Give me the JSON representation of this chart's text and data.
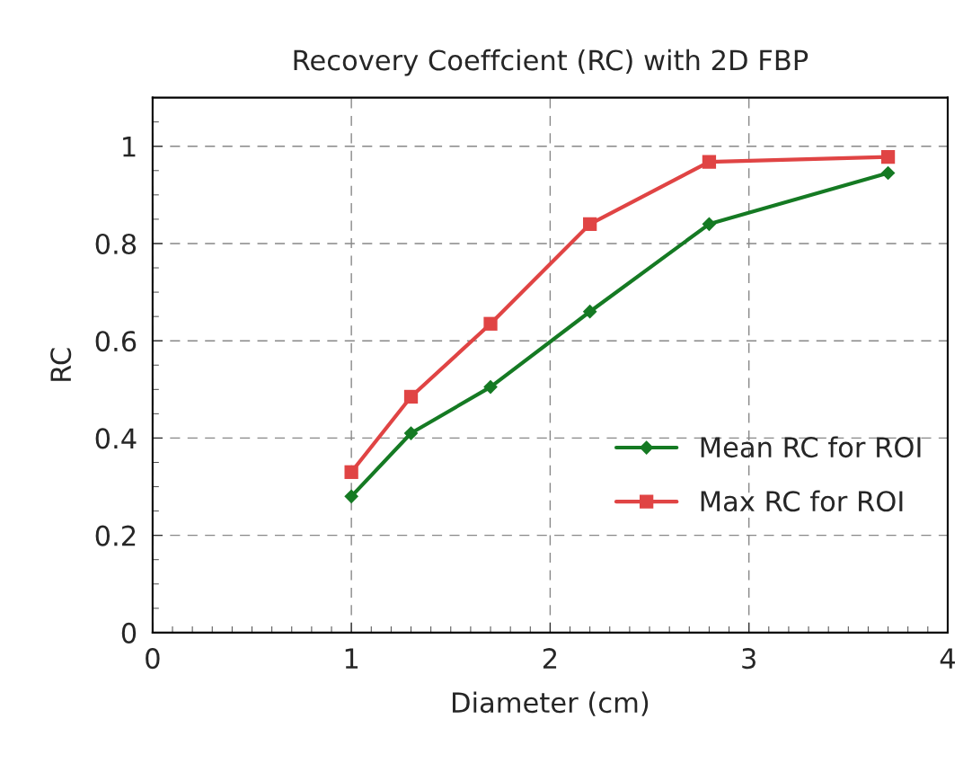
{
  "chart_data": {
    "type": "line",
    "title": "Recovery Coeffcient (RC) with 2D FBP",
    "xlabel": "Diameter (cm)",
    "ylabel": "RC",
    "x": [
      1,
      1.3,
      1.7,
      2.2,
      2.8,
      3.7
    ],
    "series": [
      {
        "name": "Mean RC for ROI",
        "color": "#157a23",
        "marker": "diamond",
        "values": [
          0.28,
          0.41,
          0.505,
          0.66,
          0.84,
          0.945
        ]
      },
      {
        "name": "Max RC for ROI",
        "color": "#e04444",
        "marker": "square",
        "values": [
          0.33,
          0.485,
          0.635,
          0.84,
          0.968,
          0.978
        ]
      }
    ],
    "xlim": [
      0,
      4
    ],
    "ylim": [
      0,
      1.1
    ],
    "xticks": [
      0,
      1,
      2,
      3,
      4,
      {
        "value": 0.1,
        "label": null
      },
      {
        "value": 0.2,
        "label": null
      },
      {
        "value": 0.3,
        "label": null
      },
      {
        "value": 0.4,
        "label": null
      },
      {
        "value": 0.5,
        "label": null
      },
      {
        "value": 0.6,
        "label": null
      },
      {
        "value": 0.7,
        "label": null
      },
      {
        "value": 0.8,
        "label": null
      },
      {
        "value": 0.9,
        "label": null
      },
      {
        "value": 1.1,
        "label": null
      },
      {
        "value": 1.2,
        "label": null
      },
      {
        "value": 1.3,
        "label": null
      },
      {
        "value": 1.4,
        "label": null
      },
      {
        "value": 1.5,
        "label": null
      },
      {
        "value": 1.6,
        "label": null
      },
      {
        "value": 1.7,
        "label": null
      },
      {
        "value": 1.8,
        "label": null
      },
      {
        "value": 1.9,
        "label": null
      },
      {
        "value": 2.1,
        "label": null
      },
      {
        "value": 2.2,
        "label": null
      },
      {
        "value": 2.3,
        "label": null
      },
      {
        "value": 2.4,
        "label": null
      },
      {
        "value": 2.5,
        "label": null
      },
      {
        "value": 2.6,
        "label": null
      },
      {
        "value": 2.7,
        "label": null
      },
      {
        "value": 2.8,
        "label": null
      },
      {
        "value": 2.9,
        "label": null
      },
      {
        "value": 3.1,
        "label": null
      },
      {
        "value": 3.2,
        "label": null
      },
      {
        "value": 3.3,
        "label": null
      },
      {
        "value": 3.4,
        "label": null
      },
      {
        "value": 3.5,
        "label": null
      },
      {
        "value": 3.6,
        "label": null
      },
      {
        "value": 3.7,
        "label": null
      },
      {
        "value": 3.8,
        "label": null
      },
      {
        "value": 3.9,
        "label": null
      }
    ],
    "yticks": [
      0,
      0.2,
      0.4,
      0.6,
      0.8,
      1,
      {
        "value": 0.05,
        "label": null
      },
      {
        "value": 0.1,
        "label": null
      },
      {
        "value": 0.15,
        "label": null
      },
      {
        "value": 0.25,
        "label": null
      },
      {
        "value": 0.3,
        "label": null
      },
      {
        "value": 0.35,
        "label": null
      },
      {
        "value": 0.45,
        "label": null
      },
      {
        "value": 0.5,
        "label": null
      },
      {
        "value": 0.55,
        "label": null
      },
      {
        "value": 0.65,
        "label": null
      },
      {
        "value": 0.7,
        "label": null
      },
      {
        "value": 0.75,
        "label": null
      },
      {
        "value": 0.85,
        "label": null
      },
      {
        "value": 0.9,
        "label": null
      },
      {
        "value": 0.95,
        "label": null
      },
      {
        "value": 1.05,
        "label": null
      }
    ],
    "grid": true,
    "legend": "bottom right",
    "line_style": "solid"
  }
}
